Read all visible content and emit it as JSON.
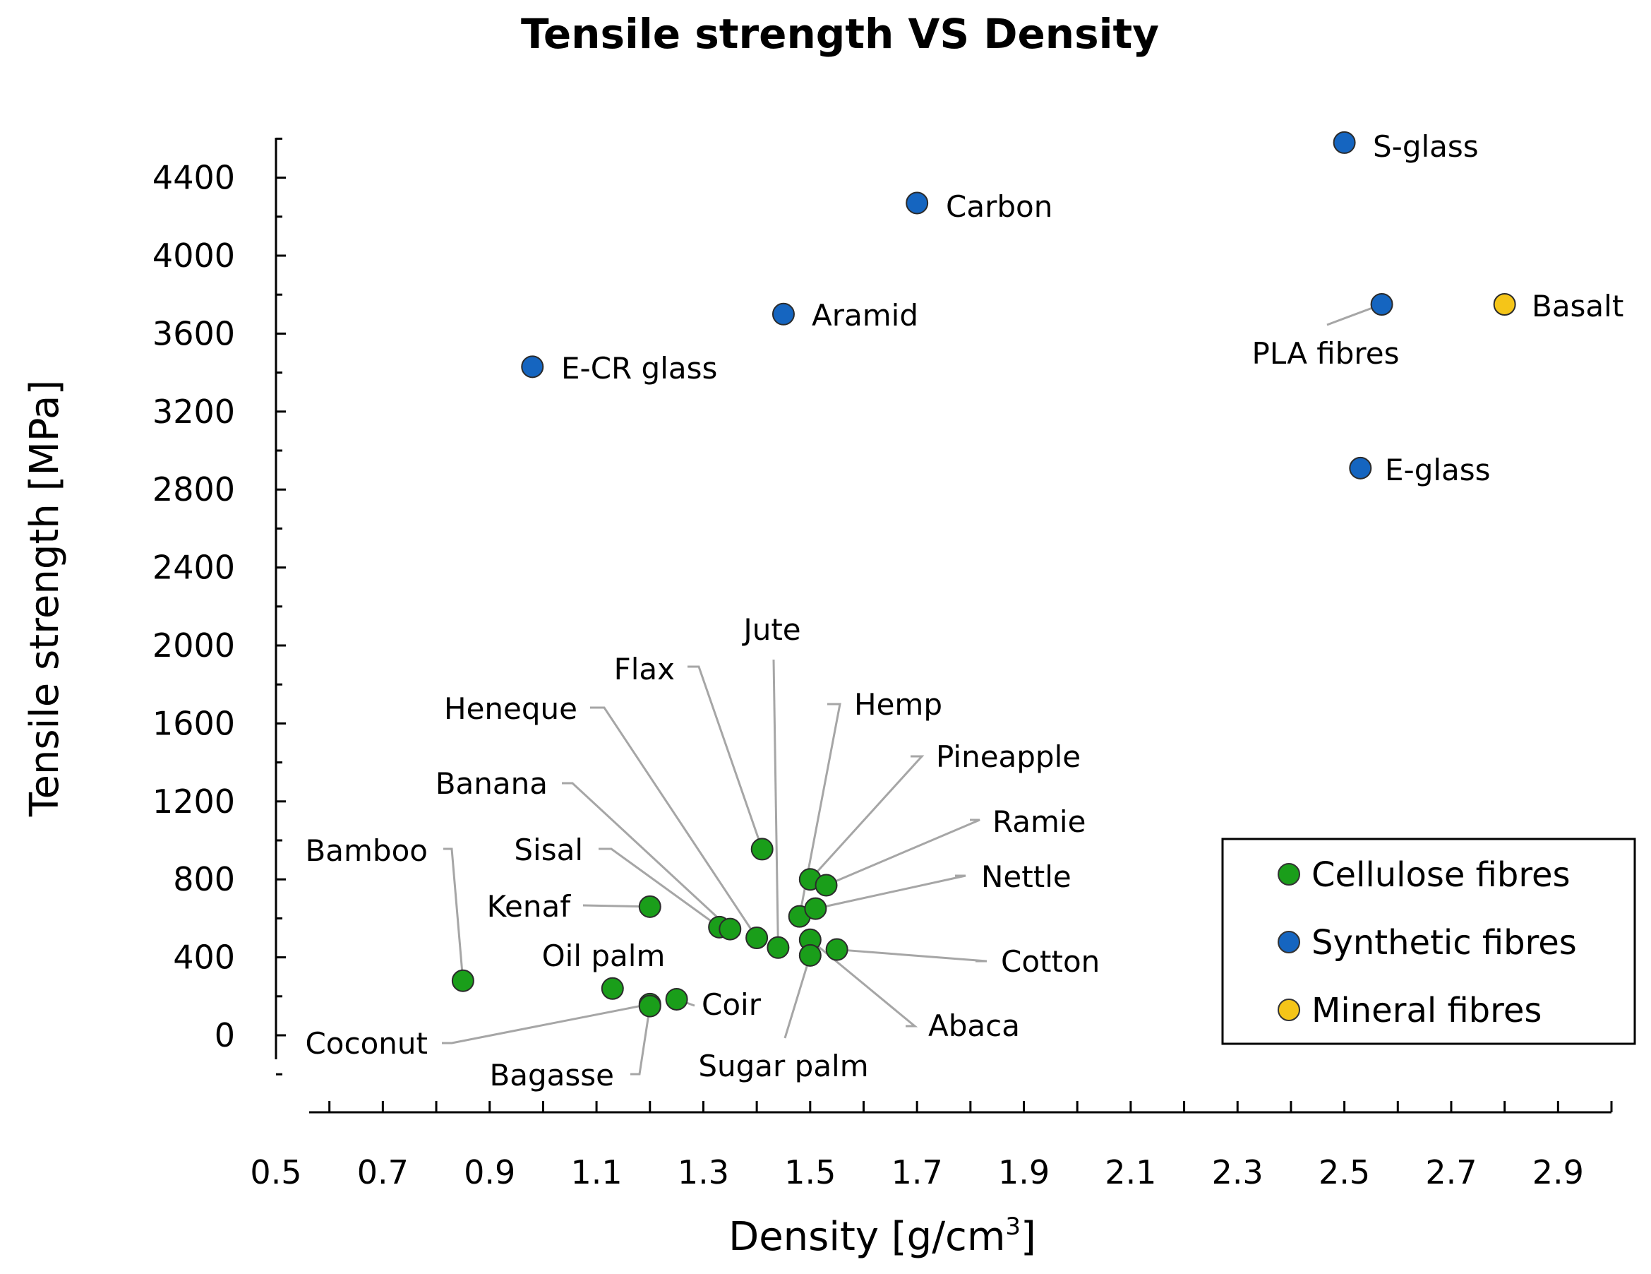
{
  "chart_data": {
    "type": "scatter",
    "title": "Tensile strength VS Density",
    "xlabel": "Density [g/cm³]",
    "ylabel": "Tensile strength [MPa]",
    "xlim": [
      0.5,
      3.0
    ],
    "ylim": [
      -100,
      4600
    ],
    "x_ticks": [
      0.5,
      0.7,
      0.9,
      1.1,
      1.3,
      1.5,
      1.7,
      1.9,
      2.1,
      2.3,
      2.5,
      2.7,
      2.9
    ],
    "x_tick_labels": [
      "0.5",
      "0.7",
      "0.9",
      "1.1",
      "1.3",
      "1.5",
      "1.7",
      "1.9",
      "2.1",
      "2.3",
      "2.5",
      "2.7",
      "2.9"
    ],
    "y_ticks": [
      0,
      400,
      800,
      1200,
      1600,
      2000,
      2400,
      2800,
      3200,
      3600,
      4000,
      4400
    ],
    "y_tick_labels": [
      "0",
      "400",
      "800",
      "1200",
      "1600",
      "2000",
      "2400",
      "2800",
      "3200",
      "3600",
      "4000",
      "4400"
    ],
    "grid": false,
    "legend_position": "bottom-right",
    "colors": {
      "Cellulose fibres": "#1a9e1a",
      "Synthetic fibres": "#1565c0",
      "Mineral fibres": "#f5c518"
    },
    "series": [
      {
        "name": "Cellulose fibres",
        "points": [
          {
            "label": "Bamboo",
            "x": 0.85,
            "y": 280
          },
          {
            "label": "Oil palm",
            "x": 1.13,
            "y": 240
          },
          {
            "label": "Coconut",
            "x": 1.2,
            "y": 160
          },
          {
            "label": "Bagasse",
            "x": 1.2,
            "y": 150
          },
          {
            "label": "Coir",
            "x": 1.25,
            "y": 185
          },
          {
            "label": "Kenaf",
            "x": 1.2,
            "y": 660
          },
          {
            "label": "Sisal",
            "x": 1.33,
            "y": 555
          },
          {
            "label": "Banana",
            "x": 1.35,
            "y": 545
          },
          {
            "label": "Heneque",
            "x": 1.4,
            "y": 500
          },
          {
            "label": "Flax",
            "x": 1.41,
            "y": 955
          },
          {
            "label": "Jute",
            "x": 1.44,
            "y": 450
          },
          {
            "label": "Hemp",
            "x": 1.48,
            "y": 610
          },
          {
            "label": "Pineapple",
            "x": 1.5,
            "y": 800
          },
          {
            "label": "Ramie",
            "x": 1.53,
            "y": 770
          },
          {
            "label": "Nettle",
            "x": 1.51,
            "y": 650
          },
          {
            "label": "Cotton",
            "x": 1.55,
            "y": 440
          },
          {
            "label": "Abaca",
            "x": 1.5,
            "y": 490
          },
          {
            "label": "Sugar palm",
            "x": 1.5,
            "y": 410
          }
        ]
      },
      {
        "name": "Synthetic fibres",
        "points": [
          {
            "label": "S-glass",
            "x": 2.5,
            "y": 4580
          },
          {
            "label": "Carbon",
            "x": 1.7,
            "y": 4270
          },
          {
            "label": "Aramid",
            "x": 1.45,
            "y": 3700
          },
          {
            "label": "E-CR glass",
            "x": 0.98,
            "y": 3430
          },
          {
            "label": "PLA fibres",
            "x": 2.57,
            "y": 3750
          },
          {
            "label": "E-glass",
            "x": 2.53,
            "y": 2910
          }
        ]
      },
      {
        "name": "Mineral fibres",
        "points": [
          {
            "label": "Basalt",
            "x": 2.8,
            "y": 3750
          }
        ]
      }
    ]
  }
}
